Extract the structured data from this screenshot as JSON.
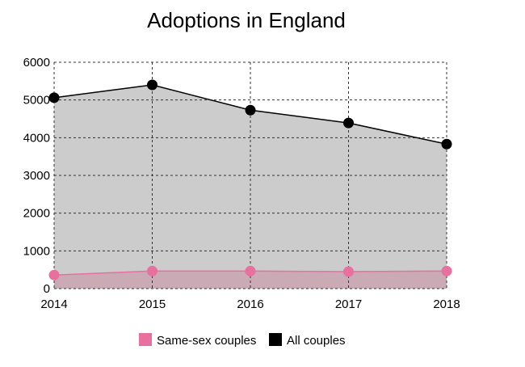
{
  "chart_data": {
    "type": "area",
    "title": "Adoptions in England",
    "xlabel": "",
    "ylabel": "",
    "x": [
      "2014",
      "2015",
      "2016",
      "2017",
      "2018"
    ],
    "ylim": [
      0,
      6000
    ],
    "yticks": [
      "0",
      "1000",
      "2000",
      "3000",
      "4000",
      "5000",
      "6000"
    ],
    "grid": true,
    "legend_position": "bottom",
    "series": [
      {
        "name": "Same-sex couples",
        "color": "#e8709e",
        "fill": "#c9aab5",
        "values": [
          360,
          465,
          465,
          450,
          465
        ]
      },
      {
        "name": "All couples",
        "color": "#000000",
        "fill": "#cccccc",
        "values": [
          5060,
          5400,
          4730,
          4390,
          3830
        ]
      }
    ]
  }
}
